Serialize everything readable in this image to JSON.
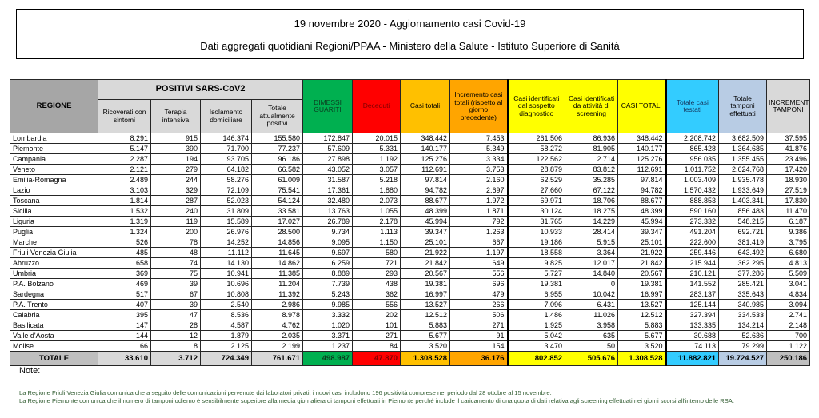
{
  "title": {
    "line1": "19 novembre 2020 - Aggiornamento casi Covid-19",
    "line2": "Dati aggregati quotidiani Regioni/PPAA - Ministero della Salute - Istituto Superiore di Sanità"
  },
  "table": {
    "region_header": "REGIONE",
    "group_header": "POSITIVI SARS-CoV2",
    "columns": [
      {
        "id": "ricoverati-con-sintomi",
        "label": "Ricoverati con sintomi",
        "header_bg": "#D9D9D9",
        "header_fg": "#000000",
        "total_bg": "#D9D9D9",
        "total_fg": "#000000"
      },
      {
        "id": "terapia-intensiva",
        "label": "Terapia intensiva",
        "header_bg": "#D9D9D9",
        "header_fg": "#000000",
        "total_bg": "#D9D9D9",
        "total_fg": "#000000"
      },
      {
        "id": "isolamento-domiciliare",
        "label": "Isolamento domiciliare",
        "header_bg": "#D9D9D9",
        "header_fg": "#000000",
        "total_bg": "#D9D9D9",
        "total_fg": "#000000"
      },
      {
        "id": "totale-attualmente-positivi",
        "label": "Totale attualmente positivi",
        "header_bg": "#D9D9D9",
        "header_fg": "#000000",
        "total_bg": "#D9D9D9",
        "total_fg": "#000000"
      },
      {
        "id": "dimessi-guariti",
        "label": "DIMESSI GUARITI",
        "header_bg": "#00B050",
        "header_fg": "#0B3D20",
        "total_bg": "#00B050",
        "total_fg": "#0B3D20"
      },
      {
        "id": "deceduti",
        "label": "Deceduti",
        "header_bg": "#FF0000",
        "header_fg": "#7F0000",
        "total_bg": "#FF0000",
        "total_fg": "#7F0000"
      },
      {
        "id": "casi-totali",
        "label": "Casi totali",
        "header_bg": "#FFC000",
        "header_fg": "#000000",
        "total_bg": "#FFC000",
        "total_fg": "#000000"
      },
      {
        "id": "incremento-casi-totali",
        "label": "Incremento casi totali (rispetto al giorno precedente)",
        "header_bg": "#FFA500",
        "header_fg": "#000000",
        "total_bg": "#FFA500",
        "total_fg": "#000000"
      },
      {
        "id": "casi-sospetto-diagnostico",
        "label": "Casi identificati dal sospetto diagnostico",
        "header_bg": "#FFFF00",
        "header_fg": "#000000",
        "total_bg": "#FFFF00",
        "total_fg": "#000000",
        "thick_left": true
      },
      {
        "id": "casi-screening",
        "label": "Casi identificati da attività di screening",
        "header_bg": "#FFFF00",
        "header_fg": "#000000",
        "total_bg": "#FFFF00",
        "total_fg": "#000000"
      },
      {
        "id": "casi-totali-maiuscolo",
        "label": "CASI TOTALI",
        "header_bg": "#FFFF00",
        "header_fg": "#000000",
        "total_bg": "#FFFF00",
        "total_fg": "#000000"
      },
      {
        "id": "totale-casi-testati",
        "label": "Totale casi testati",
        "header_bg": "#33CCFF",
        "header_fg": "#17375E",
        "total_bg": "#33CCFF",
        "total_fg": "#000000",
        "thick_left": true
      },
      {
        "id": "totale-tamponi-effettuati",
        "label": "Totale tamponi effettuati",
        "header_bg": "#B8CCE4",
        "header_fg": "#000000",
        "total_bg": "#B8CCE4",
        "total_fg": "#000000"
      },
      {
        "id": "incremento-tamponi",
        "label": "INCREMENTO TAMPONI",
        "header_bg": "#D9D9D9",
        "header_fg": "#000000",
        "total_bg": "#BFBFBF",
        "total_fg": "#000000"
      }
    ],
    "regions": [
      {
        "name": "Lombardia",
        "values": [
          "8.291",
          "915",
          "146.374",
          "155.580",
          "172.847",
          "20.015",
          "348.442",
          "7.453",
          "261.506",
          "86.936",
          "348.442",
          "2.208.742",
          "3.682.509",
          "37.595"
        ]
      },
      {
        "name": "Piemonte",
        "values": [
          "5.147",
          "390",
          "71.700",
          "77.237",
          "57.609",
          "5.331",
          "140.177",
          "5.349",
          "58.272",
          "81.905",
          "140.177",
          "865.428",
          "1.364.685",
          "41.876"
        ]
      },
      {
        "name": "Campania",
        "values": [
          "2.287",
          "194",
          "93.705",
          "96.186",
          "27.898",
          "1.192",
          "125.276",
          "3.334",
          "122.562",
          "2.714",
          "125.276",
          "956.035",
          "1.355.455",
          "23.496"
        ]
      },
      {
        "name": "Veneto",
        "values": [
          "2.121",
          "279",
          "64.182",
          "66.582",
          "43.052",
          "3.057",
          "112.691",
          "3.753",
          "28.879",
          "83.812",
          "112.691",
          "1.011.752",
          "2.624.768",
          "17.420"
        ]
      },
      {
        "name": "Emilia-Romagna",
        "values": [
          "2.489",
          "244",
          "58.276",
          "61.009",
          "31.587",
          "5.218",
          "97.814",
          "2.160",
          "62.529",
          "35.285",
          "97.814",
          "1.003.409",
          "1.935.478",
          "18.930"
        ]
      },
      {
        "name": "Lazio",
        "values": [
          "3.103",
          "329",
          "72.109",
          "75.541",
          "17.361",
          "1.880",
          "94.782",
          "2.697",
          "27.660",
          "67.122",
          "94.782",
          "1.570.432",
          "1.933.649",
          "27.519"
        ]
      },
      {
        "name": "Toscana",
        "values": [
          "1.814",
          "287",
          "52.023",
          "54.124",
          "32.480",
          "2.073",
          "88.677",
          "1.972",
          "69.971",
          "18.706",
          "88.677",
          "888.853",
          "1.403.341",
          "17.830"
        ]
      },
      {
        "name": "Sicilia",
        "values": [
          "1.532",
          "240",
          "31.809",
          "33.581",
          "13.763",
          "1.055",
          "48.399",
          "1.871",
          "30.124",
          "18.275",
          "48.399",
          "590.160",
          "856.483",
          "11.470"
        ]
      },
      {
        "name": "Liguria",
        "values": [
          "1.319",
          "119",
          "15.589",
          "17.027",
          "26.789",
          "2.178",
          "45.994",
          "792",
          "31.765",
          "14.229",
          "45.994",
          "273.332",
          "548.215",
          "6.187"
        ]
      },
      {
        "name": "Puglia",
        "values": [
          "1.324",
          "200",
          "26.976",
          "28.500",
          "9.734",
          "1.113",
          "39.347",
          "1.263",
          "10.933",
          "28.414",
          "39.347",
          "491.204",
          "692.721",
          "9.386"
        ]
      },
      {
        "name": "Marche",
        "values": [
          "526",
          "78",
          "14.252",
          "14.856",
          "9.095",
          "1.150",
          "25.101",
          "667",
          "19.186",
          "5.915",
          "25.101",
          "222.600",
          "381.419",
          "3.795"
        ]
      },
      {
        "name": "Friuli Venezia Giulia",
        "values": [
          "485",
          "48",
          "11.112",
          "11.645",
          "9.697",
          "580",
          "21.922",
          "1.197",
          "18.558",
          "3.364",
          "21.922",
          "259.446",
          "643.492",
          "6.680"
        ]
      },
      {
        "name": "Abruzzo",
        "values": [
          "658",
          "74",
          "14.130",
          "14.862",
          "6.259",
          "721",
          "21.842",
          "649",
          "9.825",
          "12.017",
          "21.842",
          "215.944",
          "362.295",
          "4.813"
        ]
      },
      {
        "name": "Umbria",
        "values": [
          "369",
          "75",
          "10.941",
          "11.385",
          "8.889",
          "293",
          "20.567",
          "556",
          "5.727",
          "14.840",
          "20.567",
          "210.121",
          "377.286",
          "5.509"
        ]
      },
      {
        "name": "P.A. Bolzano",
        "values": [
          "469",
          "39",
          "10.696",
          "11.204",
          "7.739",
          "438",
          "19.381",
          "696",
          "19.381",
          "0",
          "19.381",
          "141.552",
          "285.421",
          "3.041"
        ]
      },
      {
        "name": "Sardegna",
        "values": [
          "517",
          "67",
          "10.808",
          "11.392",
          "5.243",
          "362",
          "16.997",
          "479",
          "6.955",
          "10.042",
          "16.997",
          "283.137",
          "335.643",
          "4.834"
        ]
      },
      {
        "name": "P.A. Trento",
        "values": [
          "407",
          "39",
          "2.540",
          "2.986",
          "9.985",
          "556",
          "13.527",
          "266",
          "7.096",
          "6.431",
          "13.527",
          "125.144",
          "340.985",
          "3.094"
        ]
      },
      {
        "name": "Calabria",
        "values": [
          "395",
          "47",
          "8.536",
          "8.978",
          "3.332",
          "202",
          "12.512",
          "506",
          "1.486",
          "11.026",
          "12.512",
          "327.394",
          "334.533",
          "2.741"
        ]
      },
      {
        "name": "Basilicata",
        "values": [
          "147",
          "28",
          "4.587",
          "4.762",
          "1.020",
          "101",
          "5.883",
          "271",
          "1.925",
          "3.958",
          "5.883",
          "133.335",
          "134.214",
          "2.148"
        ]
      },
      {
        "name": "Valle d'Aosta",
        "values": [
          "144",
          "12",
          "1.879",
          "2.035",
          "3.371",
          "271",
          "5.677",
          "91",
          "5.042",
          "635",
          "5.677",
          "30.688",
          "52.636",
          "700"
        ]
      },
      {
        "name": "Molise",
        "values": [
          "66",
          "8",
          "2.125",
          "2.199",
          "1.237",
          "84",
          "3.520",
          "154",
          "3.470",
          "50",
          "3.520",
          "74.113",
          "79.299",
          "1.122"
        ]
      }
    ],
    "total": {
      "label": "TOTALE",
      "values": [
        "33.610",
        "3.712",
        "724.349",
        "761.671",
        "498.987",
        "47.870",
        "1.308.528",
        "36.176",
        "802.852",
        "505.676",
        "1.308.528",
        "11.882.821",
        "19.724.527",
        "250.186"
      ]
    }
  },
  "notes": {
    "heading": "Note:",
    "items": [
      "La Regione Friuli Venezia Giulia comunica che a seguito delle comunicazioni pervenute dai laboratori privati, i nuovi casi includono 196 positività comprese nel periodo dal 28 ottobre al 15 novembre.",
      "La Regione Piemonte comunica che il numero di tamponi odierno è sensibilmente superiore alla media giornaliera di tamponi effettuati in Piemonte perché include il caricamento di una quota di dati relativa agli screening effettuati nei giorni scorsi all'interno delle RSA."
    ]
  },
  "colors": {
    "region_header_bg": "#A6A6A6",
    "group_header_bg": "#D9D9D9",
    "total_label_bg": "#BFBFBF",
    "notes_text": "#2F5B2F",
    "green": "#00B050",
    "red": "#FF0000",
    "amber": "#FFC000",
    "orange": "#FFA500",
    "yellow": "#FFFF00",
    "azure": "#33CCFF",
    "periwinkle": "#B8CCE4"
  }
}
